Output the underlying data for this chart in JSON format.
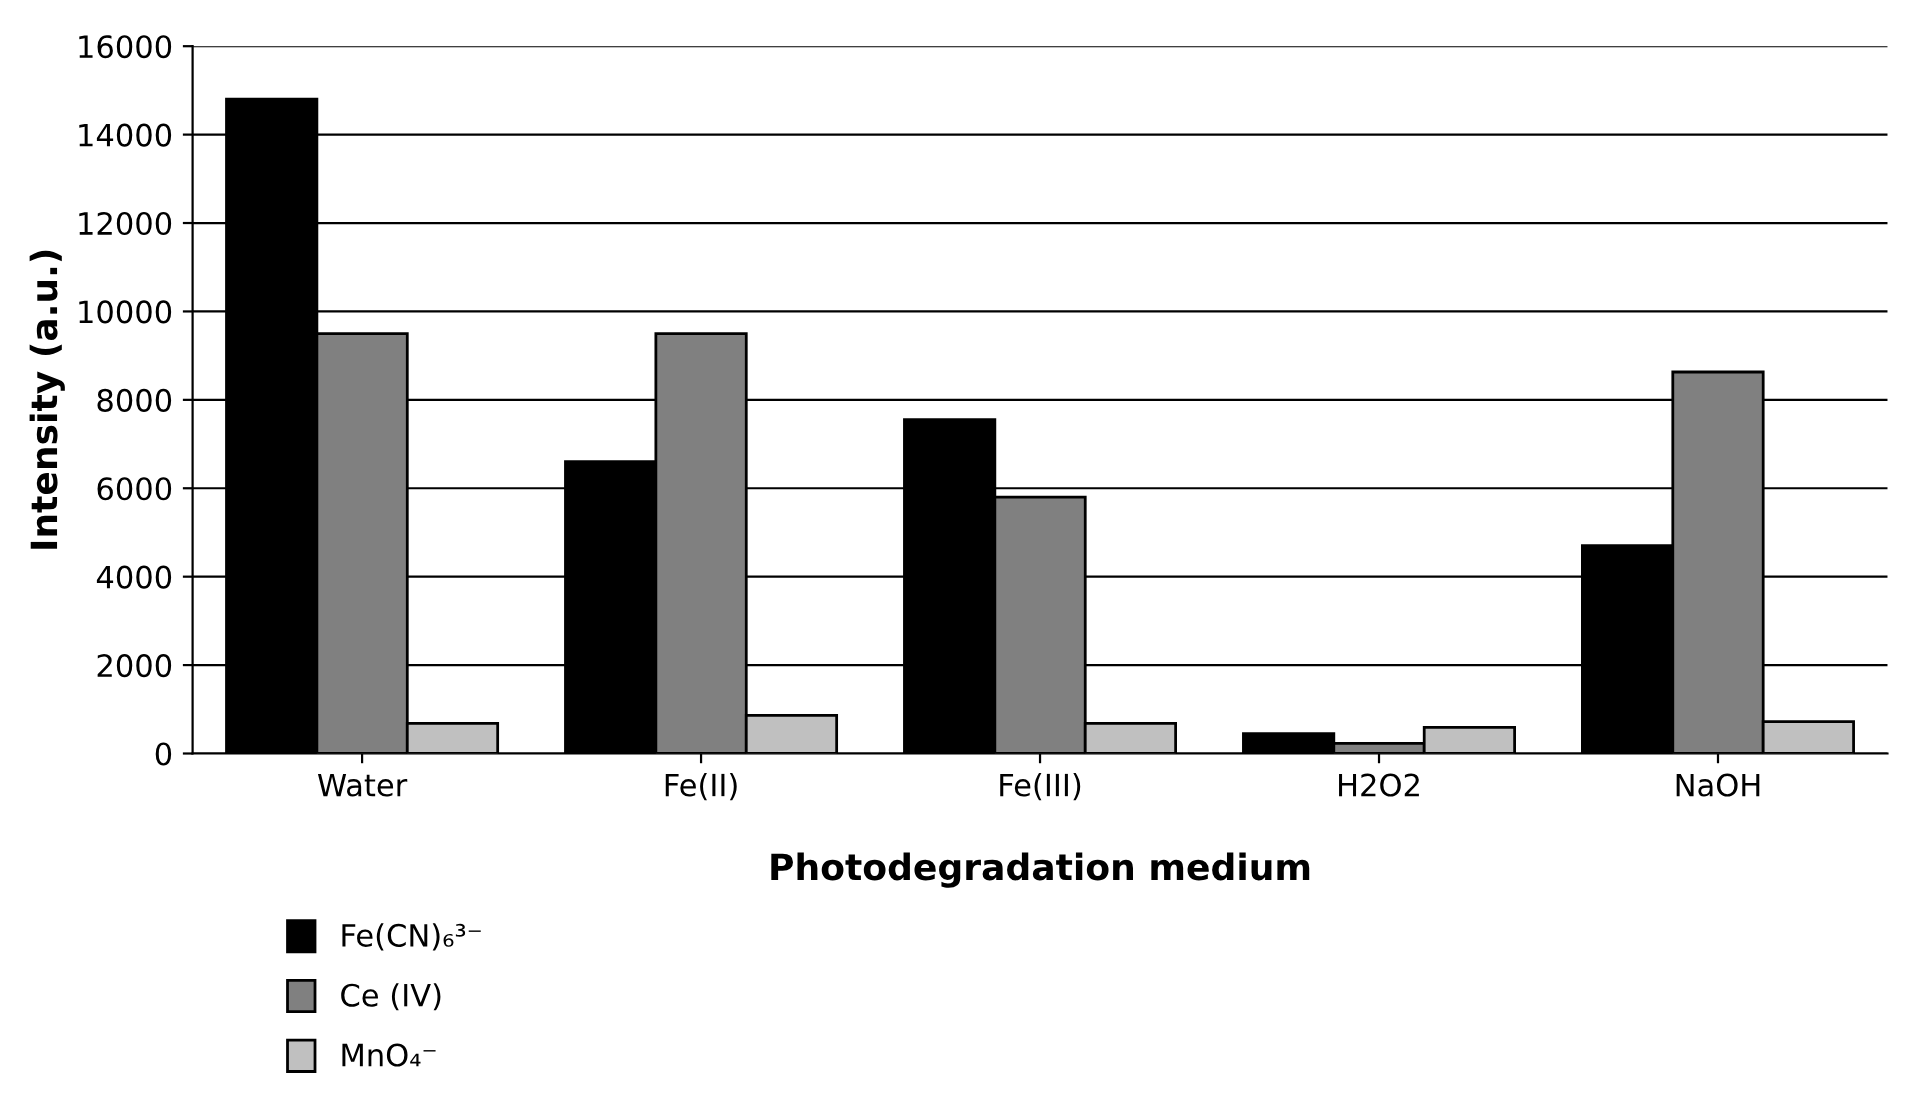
{
  "chart_data": {
    "type": "bar",
    "xlabel": "Photodegradation medium",
    "ylabel": "Intensity (a.u.)",
    "categories": [
      "Water",
      "Fe(II)",
      "Fe(III)",
      "H2O2",
      "NaOH"
    ],
    "series": [
      {
        "name": "Fe(CN)₆³⁻",
        "color": "#000000",
        "values": [
          14800,
          6600,
          7550,
          450,
          4700
        ]
      },
      {
        "name": "Ce (IV)",
        "color": "#808080",
        "values": [
          9500,
          9500,
          5800,
          230,
          8630
        ]
      },
      {
        "name": "MnO₄⁻",
        "color": "#c0c0c0",
        "values": [
          680,
          860,
          680,
          590,
          720
        ]
      }
    ],
    "ylim": [
      0,
      16000
    ],
    "yticks": [
      0,
      2000,
      4000,
      6000,
      8000,
      10000,
      12000,
      14000,
      16000
    ],
    "grid": "y",
    "legend": "bottom left"
  }
}
